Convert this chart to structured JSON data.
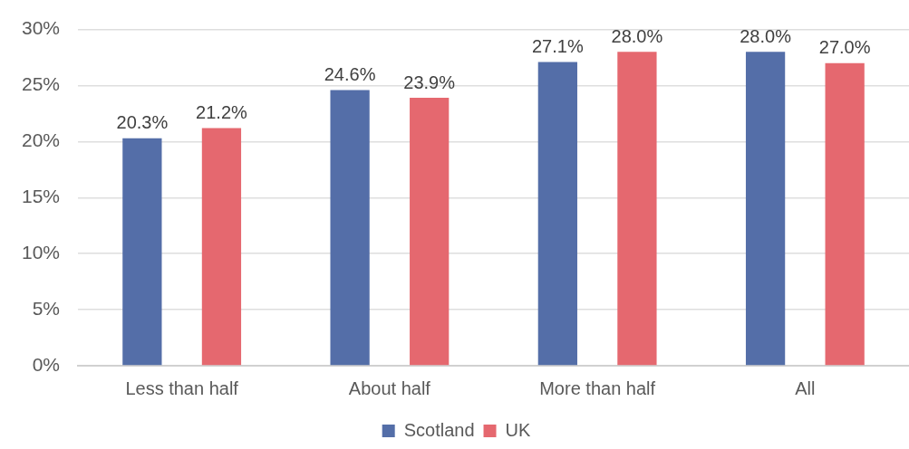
{
  "chart_data": {
    "type": "bar",
    "categories": [
      "Less than half",
      "About half",
      "More than half",
      "All"
    ],
    "series": [
      {
        "name": "Scotland",
        "color": "#546ea8",
        "values": [
          20.3,
          24.6,
          27.1,
          28.0
        ],
        "value_labels": [
          "20.3%",
          "24.6%",
          "27.1%",
          "28.0%"
        ]
      },
      {
        "name": "UK",
        "color": "#e5686f",
        "values": [
          21.2,
          23.9,
          28.0,
          27.0
        ],
        "value_labels": [
          "21.2%",
          "23.9%",
          "28.0%",
          "27.0%"
        ]
      }
    ],
    "ylim": [
      0,
      30
    ],
    "yticks": [
      {
        "value": 0,
        "label": "0%"
      },
      {
        "value": 5,
        "label": "5%"
      },
      {
        "value": 10,
        "label": "10%"
      },
      {
        "value": 15,
        "label": "15%"
      },
      {
        "value": 20,
        "label": "20%"
      },
      {
        "value": 25,
        "label": "25%"
      },
      {
        "value": 30,
        "label": "30%"
      }
    ],
    "grid": "y",
    "legend": "bottom"
  }
}
